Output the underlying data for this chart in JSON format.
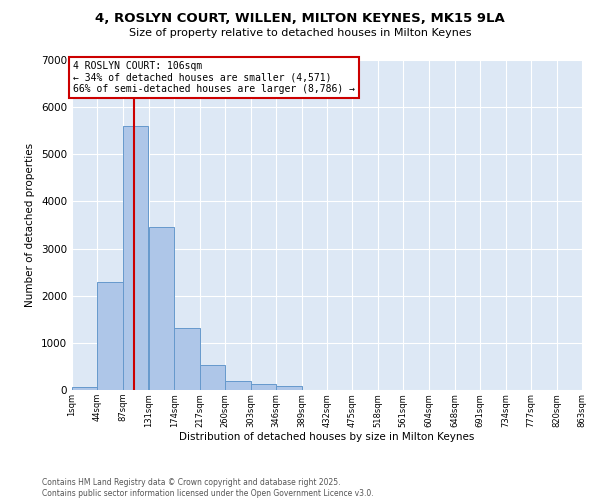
{
  "title_line1": "4, ROSLYN COURT, WILLEN, MILTON KEYNES, MK15 9LA",
  "title_line2": "Size of property relative to detached houses in Milton Keynes",
  "xlabel": "Distribution of detached houses by size in Milton Keynes",
  "ylabel": "Number of detached properties",
  "bar_color": "#aec6e8",
  "bar_edge_color": "#6699cc",
  "background_color": "#dde8f5",
  "annotation_box_edgecolor": "#cc0000",
  "annotation_line_color": "#cc0000",
  "annotation_text": "4 ROSLYN COURT: 106sqm\n← 34% of detached houses are smaller (4,571)\n66% of semi-detached houses are larger (8,786) →",
  "red_line_x": 106,
  "bins": [
    1,
    44,
    87,
    131,
    174,
    217,
    260,
    303,
    346,
    389,
    432,
    475,
    518,
    561,
    604,
    648,
    691,
    734,
    777,
    820,
    863
  ],
  "counts": [
    60,
    2300,
    5600,
    3450,
    1310,
    520,
    190,
    120,
    80,
    0,
    0,
    0,
    0,
    0,
    0,
    0,
    0,
    0,
    0,
    0
  ],
  "ylim": [
    0,
    7000
  ],
  "yticks": [
    0,
    1000,
    2000,
    3000,
    4000,
    5000,
    6000,
    7000
  ],
  "footer_text": "Contains HM Land Registry data © Crown copyright and database right 2025.\nContains public sector information licensed under the Open Government Licence v3.0.",
  "figsize": [
    6.0,
    5.0
  ],
  "dpi": 100
}
